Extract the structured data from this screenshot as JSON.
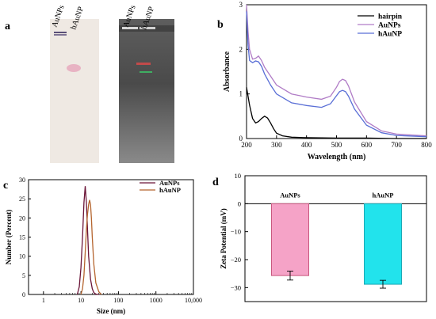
{
  "panel_letters": [
    "a",
    "b",
    "c",
    "d"
  ],
  "panel_a": {
    "lane_labels_left": [
      "AuNPs",
      "hAuNP"
    ],
    "lane_labels_right": [
      "AuNPs",
      "hAuNP"
    ]
  },
  "chart_data": [
    {
      "panel": "b",
      "type": "line",
      "xlabel": "Wavelength (nm)",
      "ylabel": "Absorbance",
      "xlim": [
        200,
        800
      ],
      "ylim": [
        0,
        3
      ],
      "xticks": [
        200,
        300,
        400,
        500,
        600,
        700,
        800
      ],
      "yticks": [
        0,
        1,
        2,
        3
      ],
      "legend_position": "top-right",
      "series": [
        {
          "name": "hairpin",
          "color": "#000000",
          "x": [
            200,
            210,
            220,
            230,
            240,
            250,
            260,
            270,
            280,
            290,
            300,
            320,
            350,
            400,
            500,
            600,
            700,
            800
          ],
          "y": [
            1.15,
            0.75,
            0.45,
            0.35,
            0.38,
            0.45,
            0.5,
            0.46,
            0.35,
            0.22,
            0.12,
            0.06,
            0.03,
            0.02,
            0.01,
            0.01,
            0.0,
            0.0
          ]
        },
        {
          "name": "AuNPs",
          "color": "#b07cc6",
          "x": [
            200,
            205,
            210,
            220,
            230,
            240,
            250,
            260,
            280,
            300,
            350,
            400,
            450,
            480,
            500,
            510,
            520,
            530,
            540,
            560,
            600,
            650,
            700,
            800
          ],
          "y": [
            3.0,
            2.4,
            2.0,
            1.78,
            1.8,
            1.85,
            1.75,
            1.6,
            1.4,
            1.2,
            1.0,
            0.93,
            0.88,
            0.95,
            1.15,
            1.28,
            1.33,
            1.3,
            1.18,
            0.82,
            0.38,
            0.17,
            0.1,
            0.06
          ]
        },
        {
          "name": "hAuNP",
          "color": "#5a6fd6",
          "x": [
            200,
            205,
            210,
            220,
            230,
            240,
            250,
            260,
            280,
            300,
            350,
            400,
            450,
            480,
            500,
            510,
            520,
            530,
            540,
            560,
            600,
            650,
            700,
            800
          ],
          "y": [
            2.85,
            2.1,
            1.75,
            1.7,
            1.74,
            1.72,
            1.62,
            1.45,
            1.2,
            1.0,
            0.8,
            0.74,
            0.7,
            0.78,
            0.96,
            1.05,
            1.08,
            1.05,
            0.95,
            0.66,
            0.3,
            0.13,
            0.07,
            0.04
          ]
        }
      ]
    },
    {
      "panel": "c",
      "type": "line",
      "xlabel": "Size (nm)",
      "ylabel": "Number (Percent)",
      "x_scale": "log",
      "xlim": [
        0.4,
        10000
      ],
      "ylim": [
        0,
        30
      ],
      "xticks": [
        1,
        10,
        100,
        1000,
        10000
      ],
      "xtick_labels": [
        "1",
        "10",
        "100",
        "1000",
        "10,000"
      ],
      "yticks": [
        0,
        5,
        10,
        15,
        20,
        25,
        30
      ],
      "legend_position": "top-right",
      "series": [
        {
          "name": "AuNPs",
          "color": "#6b1538",
          "x": [
            8,
            9,
            10,
            11,
            12,
            13,
            14,
            15,
            16,
            18,
            20,
            22,
            25,
            30
          ],
          "y": [
            0,
            2,
            7,
            15,
            24,
            28.3,
            24,
            17,
            10,
            4,
            1.5,
            0.5,
            0.1,
            0
          ]
        },
        {
          "name": "hAuNP",
          "color": "#b5652f",
          "x": [
            10,
            11,
            12,
            13,
            14,
            15,
            16,
            17,
            18,
            19,
            20,
            22,
            25,
            30,
            35
          ],
          "y": [
            0,
            1.5,
            5,
            11,
            17,
            21,
            23.5,
            24.7,
            23.5,
            20,
            15,
            8,
            3,
            0.7,
            0
          ]
        }
      ]
    },
    {
      "panel": "d",
      "type": "bar",
      "ylabel": "Zeta Potential (mV)",
      "ylim": [
        -35,
        10
      ],
      "yticks": [
        10,
        0,
        -10,
        -20,
        -30
      ],
      "ytick_labels": [
        "10",
        "0",
        "−10",
        "−20",
        "−30"
      ],
      "categories": [
        "AuNPs",
        "hAuNP"
      ],
      "values": [
        -25.7,
        -28.8
      ],
      "errors": [
        1.6,
        1.4
      ],
      "colors": [
        "#f5a3c7",
        "#22e3ec"
      ],
      "edge_colors": [
        "#c9587f",
        "#1aa9b5"
      ]
    }
  ]
}
